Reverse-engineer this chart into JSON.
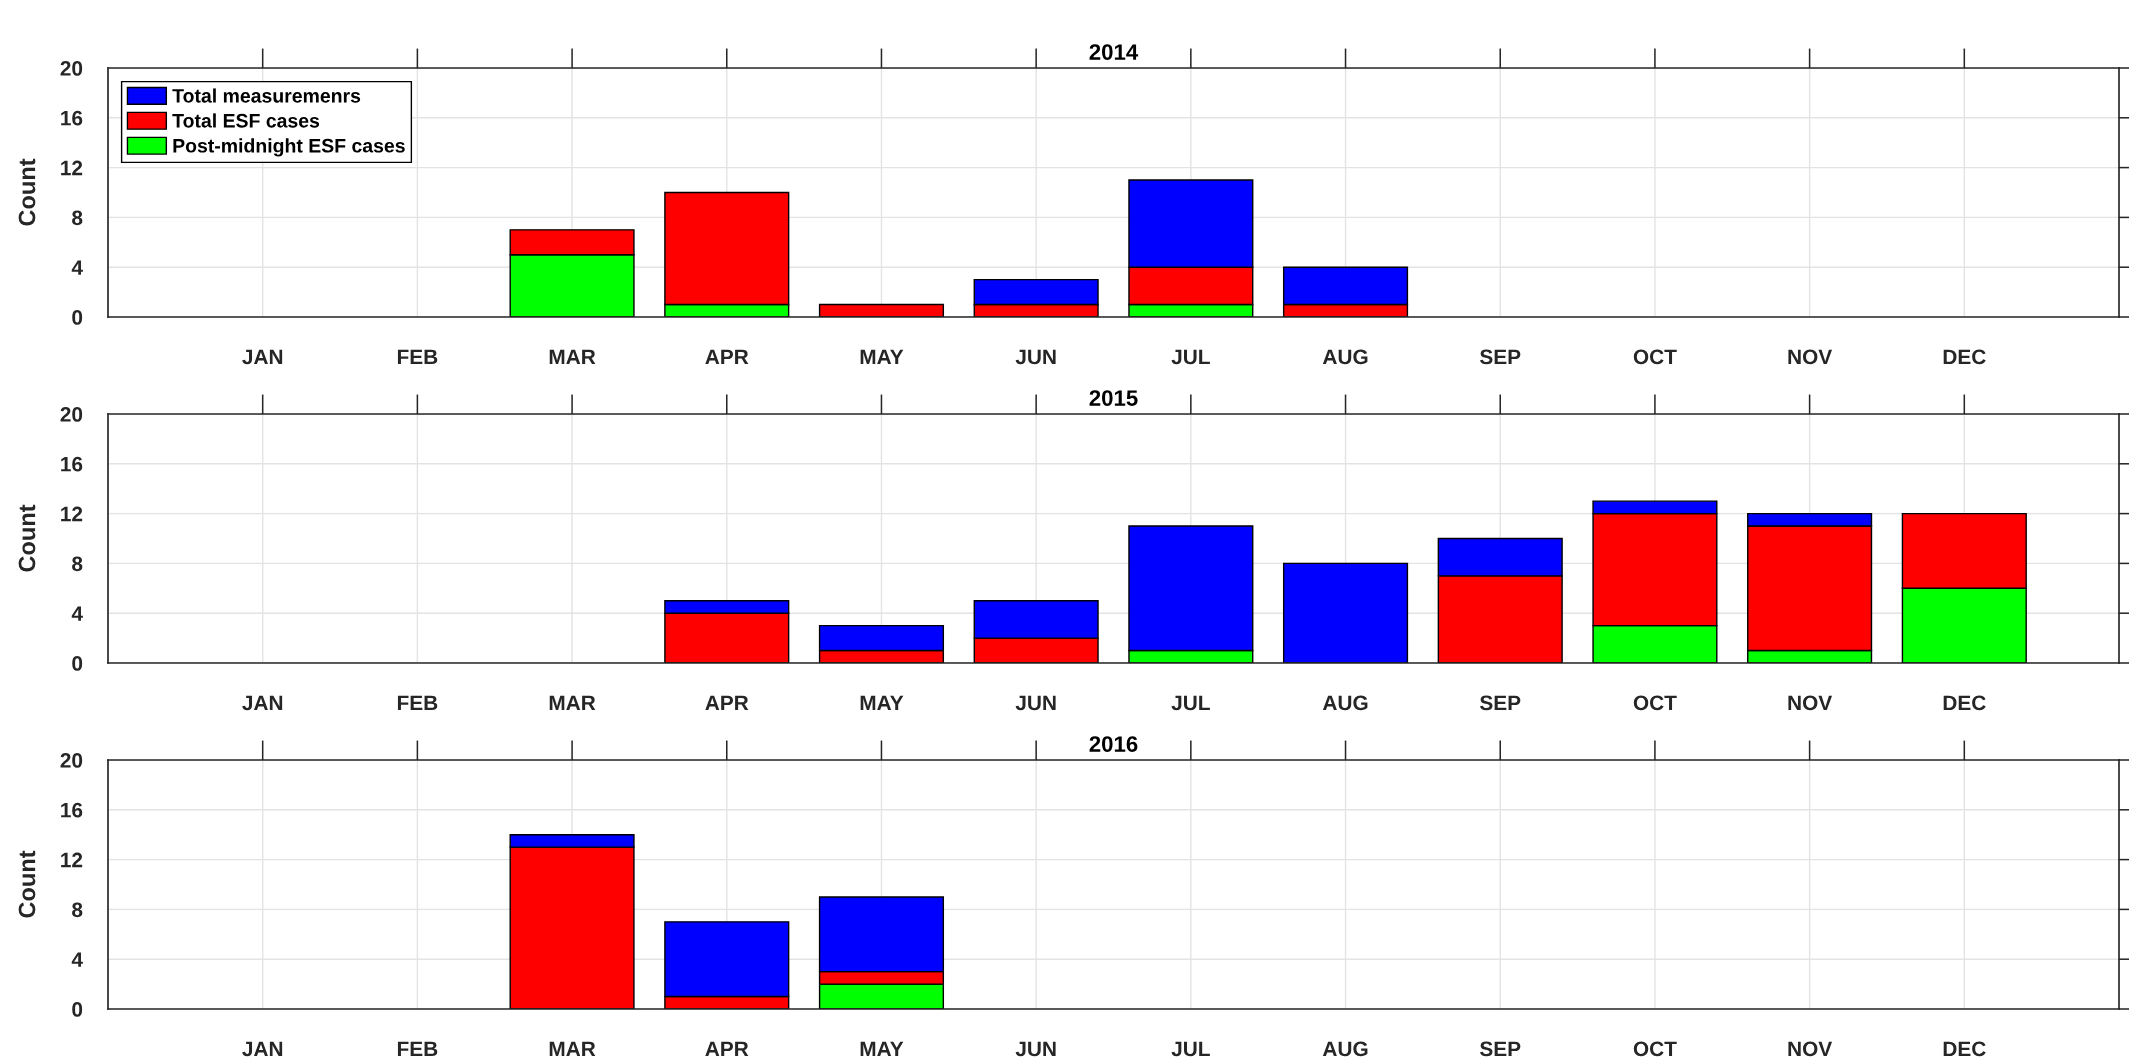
{
  "chart_data": [
    {
      "type": "bar",
      "title": "2014",
      "ylabel": "Count",
      "categories": [
        "JAN",
        "FEB",
        "MAR",
        "APR",
        "MAY",
        "JUN",
        "JUL",
        "AUG",
        "SEP",
        "OCT",
        "NOV",
        "DEC"
      ],
      "stacked": true,
      "series": [
        {
          "name": "Post-midnight ESF cases",
          "color": "#00ff00",
          "values": [
            0,
            0,
            5,
            1,
            0,
            0,
            1,
            0,
            0,
            0,
            0,
            0
          ]
        },
        {
          "name": "Total ESF cases",
          "color": "#ff0000",
          "values": [
            0,
            0,
            2,
            9,
            1,
            1,
            3,
            1,
            0,
            0,
            0,
            0
          ]
        },
        {
          "name": "Total measuremenrs",
          "color": "#0000ff",
          "values": [
            0,
            0,
            0,
            0,
            0,
            2,
            7,
            3,
            0,
            0,
            0,
            0
          ]
        }
      ],
      "ylim": [
        0,
        20
      ],
      "yticks": [
        0,
        4,
        8,
        12,
        16,
        20
      ],
      "grid": true,
      "legend": "top left"
    },
    {
      "type": "bar",
      "title": "2015",
      "ylabel": "Count",
      "categories": [
        "JAN",
        "FEB",
        "MAR",
        "APR",
        "MAY",
        "JUN",
        "JUL",
        "AUG",
        "SEP",
        "OCT",
        "NOV",
        "DEC"
      ],
      "stacked": true,
      "series": [
        {
          "color": "#00ff00",
          "values": [
            0,
            0,
            0,
            0,
            0,
            0,
            1,
            0,
            0,
            3,
            1,
            6
          ]
        },
        {
          "color": "#ff0000",
          "values": [
            0,
            0,
            0,
            4,
            1,
            2,
            0,
            0,
            7,
            9,
            10,
            6
          ]
        },
        {
          "color": "#0000ff",
          "values": [
            0,
            0,
            0,
            1,
            2,
            3,
            10,
            8,
            3,
            1,
            1,
            0
          ]
        }
      ],
      "ylim": [
        0,
        20
      ],
      "yticks": [
        0,
        4,
        8,
        12,
        16,
        20
      ],
      "grid": true
    },
    {
      "type": "bar",
      "title": "2016",
      "ylabel": "Count",
      "categories": [
        "JAN",
        "FEB",
        "MAR",
        "APR",
        "MAY",
        "JUN",
        "JUL",
        "AUG",
        "SEP",
        "OCT",
        "NOV",
        "DEC"
      ],
      "stacked": true,
      "series": [
        {
          "color": "#00ff00",
          "values": [
            0,
            0,
            0,
            0,
            2,
            0,
            0,
            0,
            0,
            0,
            0,
            0
          ]
        },
        {
          "color": "#ff0000",
          "values": [
            0,
            0,
            13,
            1,
            1,
            0,
            0,
            0,
            0,
            0,
            0,
            0
          ]
        },
        {
          "color": "#0000ff",
          "values": [
            0,
            0,
            1,
            6,
            6,
            0,
            0,
            0,
            0,
            0,
            0,
            0
          ]
        }
      ],
      "ylim": [
        0,
        20
      ],
      "yticks": [
        0,
        4,
        8,
        12,
        16,
        20
      ],
      "grid": true
    }
  ]
}
